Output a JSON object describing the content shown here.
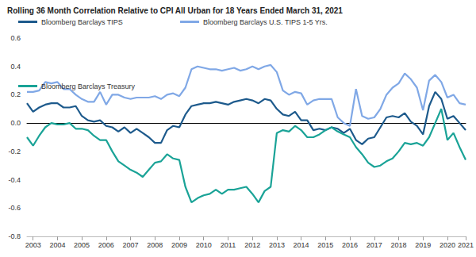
{
  "chart_data": {
    "type": "line",
    "title": "Rolling 36 Month Correlation Relative to CPI All Urban for 18 Years Ended March 31, 2021",
    "categories": [
      null,
      "2003",
      null,
      null,
      null,
      "2004",
      null,
      null,
      null,
      "2005",
      null,
      null,
      null,
      "2006",
      null,
      null,
      null,
      "2007",
      null,
      null,
      null,
      "2008",
      null,
      null,
      null,
      "2009",
      null,
      null,
      null,
      "2010",
      null,
      null,
      null,
      "2011",
      null,
      null,
      null,
      "2012",
      null,
      null,
      null,
      "2013",
      null,
      null,
      null,
      "2014",
      null,
      null,
      null,
      "2015",
      null,
      null,
      null,
      "2016",
      null,
      null,
      null,
      "2017",
      null,
      null,
      null,
      "2018",
      null,
      null,
      null,
      "2019",
      null,
      null,
      null,
      "2020",
      null,
      null,
      "2021"
    ],
    "series": [
      {
        "name": "Bloomberg Barclays TIPS",
        "color": "#1d5a8c",
        "values": [
          0.14,
          0.08,
          0.11,
          0.13,
          0.14,
          0.14,
          0.11,
          0.11,
          0.12,
          0.05,
          0.02,
          0.01,
          0.02,
          -0.02,
          -0.03,
          -0.06,
          -0.03,
          -0.07,
          -0.04,
          -0.07,
          -0.1,
          -0.14,
          -0.14,
          -0.05,
          -0.02,
          -0.03,
          0.06,
          0.12,
          0.13,
          0.14,
          0.14,
          0.15,
          0.14,
          0.13,
          0.15,
          0.16,
          0.17,
          0.16,
          0.14,
          0.17,
          0.16,
          0.1,
          0.06,
          0.05,
          0.08,
          0.02,
          0.02,
          -0.05,
          -0.04,
          -0.05,
          -0.03,
          -0.04,
          -0.07,
          -0.04,
          -0.12,
          -0.15,
          -0.11,
          -0.1,
          -0.03,
          0.04,
          0.05,
          0.04,
          0.07,
          0.01,
          -0.02,
          -0.08,
          0.12,
          0.22,
          0.17,
          0.03,
          0.05,
          0.0,
          -0.05
        ]
      },
      {
        "name": "Bloomberg Barclays U.S. TIPS 1-5 Yrs.",
        "color": "#80a8e6",
        "values": [
          0.22,
          0.22,
          0.23,
          0.29,
          0.28,
          0.29,
          0.24,
          0.24,
          0.2,
          0.17,
          0.15,
          0.15,
          0.22,
          0.13,
          0.2,
          0.2,
          0.18,
          0.17,
          0.18,
          0.18,
          0.18,
          0.19,
          0.17,
          0.2,
          0.21,
          0.19,
          0.25,
          0.38,
          0.4,
          0.39,
          0.38,
          0.38,
          0.37,
          0.38,
          0.39,
          0.37,
          0.38,
          0.4,
          0.38,
          0.4,
          0.41,
          0.36,
          0.23,
          0.2,
          0.22,
          0.21,
          0.13,
          0.16,
          0.17,
          0.17,
          0.17,
          0.04,
          0.0,
          -0.02,
          0.24,
          0.05,
          0.03,
          0.04,
          0.1,
          0.2,
          0.25,
          0.28,
          0.35,
          0.31,
          0.25,
          0.09,
          0.3,
          0.34,
          0.29,
          0.18,
          0.2,
          0.14,
          0.13
        ]
      },
      {
        "name": "Bloomberg Barclays Treasury",
        "color": "#1aa397",
        "values": [
          -0.1,
          -0.16,
          -0.09,
          -0.03,
          0.0,
          -0.01,
          -0.01,
          0.0,
          -0.04,
          -0.04,
          -0.05,
          -0.09,
          -0.12,
          -0.12,
          -0.2,
          -0.27,
          -0.3,
          -0.33,
          -0.35,
          -0.38,
          -0.33,
          -0.28,
          -0.27,
          -0.22,
          -0.25,
          -0.26,
          -0.45,
          -0.56,
          -0.53,
          -0.51,
          -0.5,
          -0.47,
          -0.5,
          -0.47,
          -0.47,
          -0.46,
          -0.45,
          -0.5,
          -0.56,
          -0.48,
          -0.45,
          -0.07,
          -0.05,
          -0.06,
          -0.02,
          -0.05,
          -0.1,
          -0.1,
          -0.08,
          -0.05,
          -0.03,
          -0.06,
          -0.08,
          -0.1,
          -0.17,
          -0.22,
          -0.28,
          -0.31,
          -0.3,
          -0.27,
          -0.25,
          -0.2,
          -0.14,
          -0.15,
          -0.14,
          -0.16,
          -0.1,
          0.0,
          0.1,
          -0.12,
          -0.07,
          -0.17,
          -0.26
        ]
      }
    ],
    "ylim": [
      -0.8,
      0.6
    ],
    "yticks": [
      -0.8,
      -0.6,
      -0.4,
      -0.2,
      {
        "value": 0,
        "label": "0.0"
      },
      0.2,
      0.4,
      0.6
    ],
    "grid": false,
    "legend": "top"
  }
}
